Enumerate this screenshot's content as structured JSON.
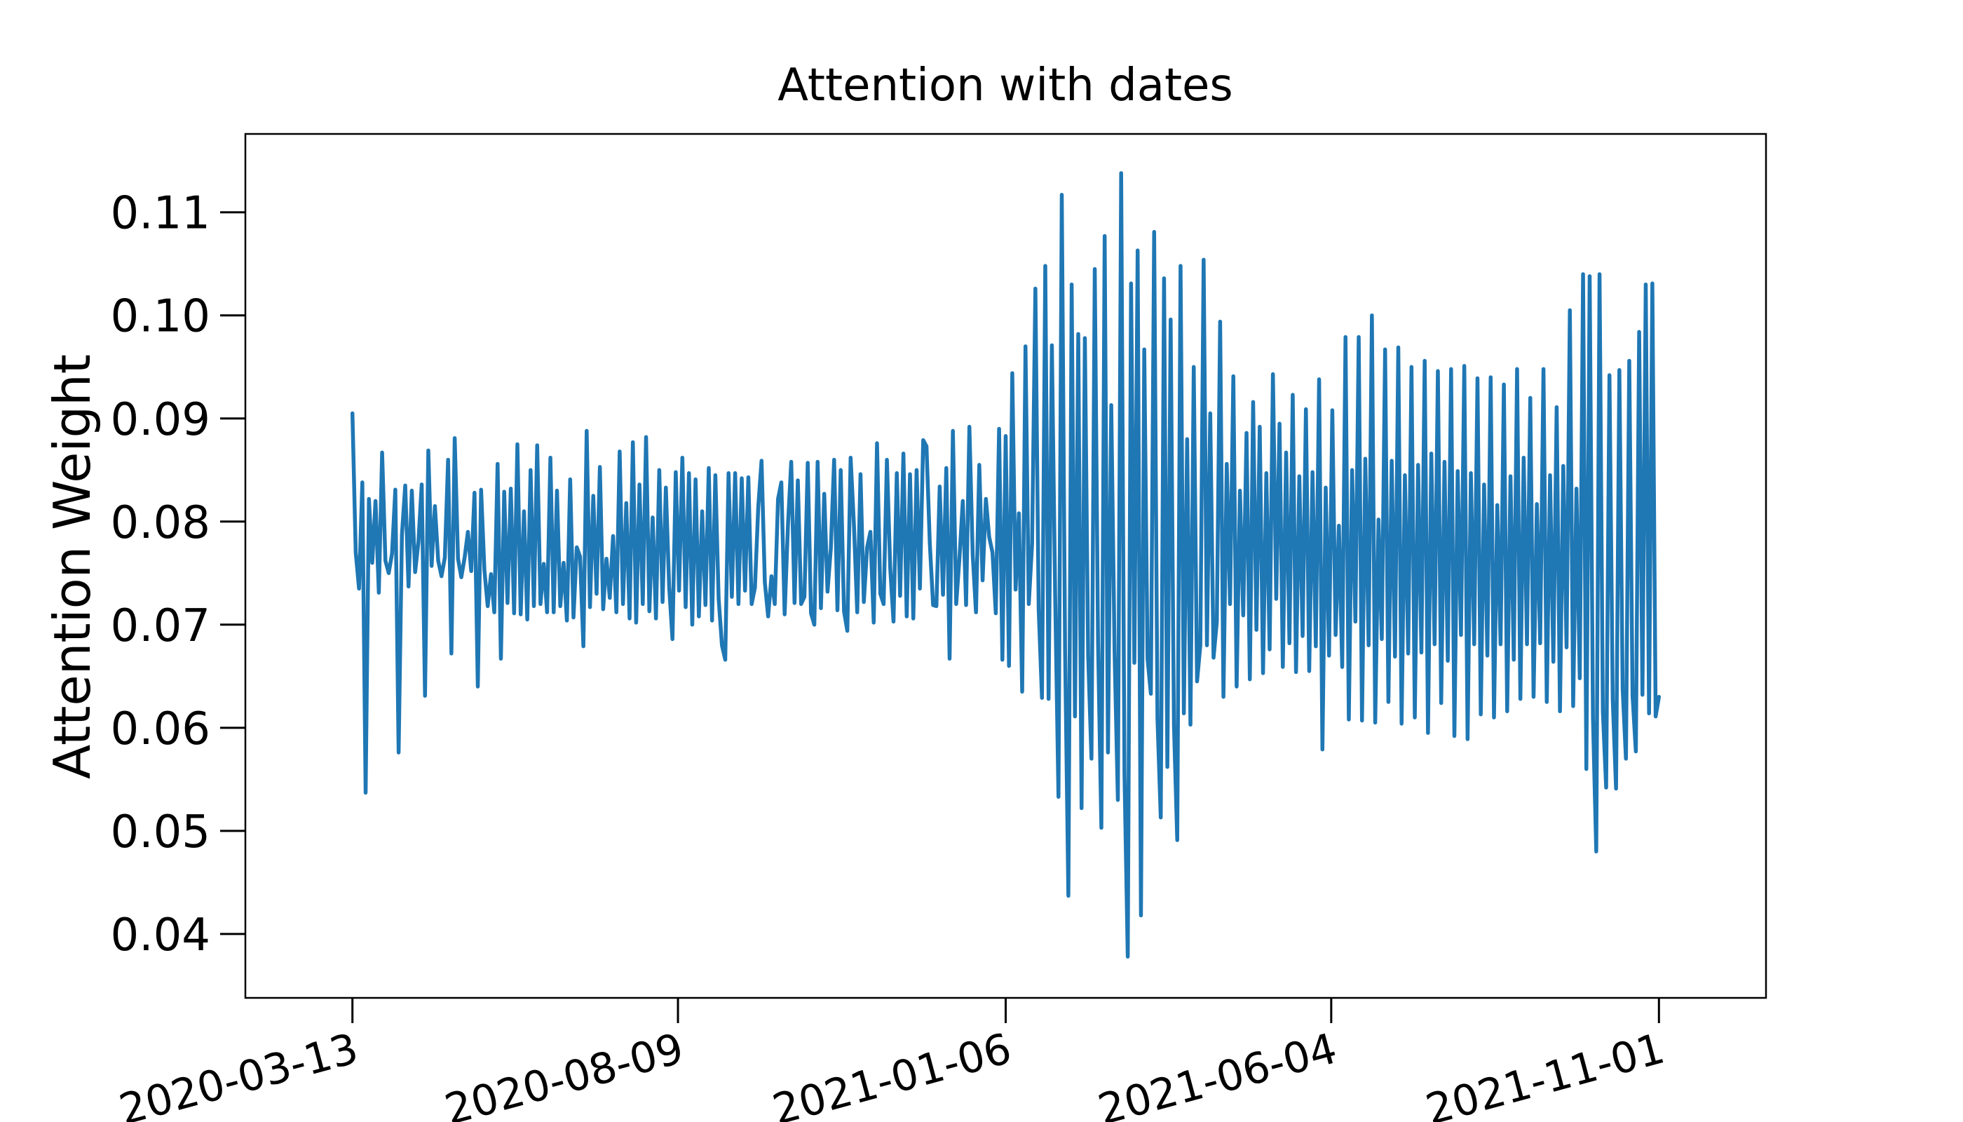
{
  "chart_data": {
    "type": "line",
    "title": "Attention with dates",
    "xlabel": "",
    "ylabel": "Attention Weight",
    "x_start": "2020-03-13",
    "x_end": "2021-11-01",
    "xlim": [
      "2020-01-24",
      "2021-12-20"
    ],
    "ylim": [
      0.0338,
      0.1176
    ],
    "xticks": [
      "2020-03-13",
      "2020-08-09",
      "2021-01-06",
      "2021-06-04",
      "2021-11-01"
    ],
    "yticks": [
      "0.04",
      "0.05",
      "0.06",
      "0.07",
      "0.08",
      "0.09",
      "0.10",
      "0.11"
    ],
    "grid": false,
    "line_color": "#1f77b4",
    "series": [
      {
        "values": [
          0.0905,
          0.077,
          0.0735,
          0.0838,
          0.0537,
          0.0822,
          0.076,
          0.082,
          0.0731,
          0.0867,
          0.0762,
          0.075,
          0.0769,
          0.0831,
          0.0576,
          0.0787,
          0.0835,
          0.0737,
          0.083,
          0.0751,
          0.078,
          0.0836,
          0.0631,
          0.0869,
          0.0757,
          0.0815,
          0.0762,
          0.0747,
          0.0765,
          0.086,
          0.0672,
          0.0881,
          0.0764,
          0.0746,
          0.0765,
          0.079,
          0.0752,
          0.0828,
          0.064,
          0.0831,
          0.0753,
          0.0718,
          0.0749,
          0.0712,
          0.0856,
          0.0667,
          0.0829,
          0.0721,
          0.0832,
          0.0711,
          0.0875,
          0.071,
          0.081,
          0.0705,
          0.085,
          0.0718,
          0.0874,
          0.072,
          0.0759,
          0.0712,
          0.0862,
          0.0712,
          0.083,
          0.0718,
          0.076,
          0.0704,
          0.0841,
          0.0707,
          0.0775,
          0.0766,
          0.0679,
          0.0888,
          0.0717,
          0.0825,
          0.073,
          0.0853,
          0.0715,
          0.0764,
          0.0726,
          0.0786,
          0.0712,
          0.0868,
          0.072,
          0.0818,
          0.0706,
          0.0877,
          0.0702,
          0.0836,
          0.072,
          0.0882,
          0.0713,
          0.0804,
          0.0706,
          0.085,
          0.0722,
          0.0833,
          0.0737,
          0.0686,
          0.0848,
          0.0733,
          0.0862,
          0.0717,
          0.0847,
          0.07,
          0.0841,
          0.0708,
          0.081,
          0.0719,
          0.0852,
          0.0704,
          0.0845,
          0.0725,
          0.068,
          0.0666,
          0.0847,
          0.0727,
          0.0847,
          0.072,
          0.0842,
          0.0733,
          0.0843,
          0.072,
          0.0736,
          0.0814,
          0.0859,
          0.0741,
          0.0708,
          0.0747,
          0.072,
          0.0822,
          0.0838,
          0.071,
          0.0796,
          0.0858,
          0.0721,
          0.084,
          0.072,
          0.0727,
          0.0857,
          0.0711,
          0.07,
          0.0858,
          0.0716,
          0.0827,
          0.0732,
          0.0774,
          0.086,
          0.0714,
          0.085,
          0.0713,
          0.0694,
          0.0862,
          0.0797,
          0.0712,
          0.0846,
          0.0722,
          0.0775,
          0.079,
          0.0702,
          0.0876,
          0.073,
          0.072,
          0.086,
          0.0755,
          0.0703,
          0.0847,
          0.0728,
          0.0866,
          0.0708,
          0.0846,
          0.0706,
          0.085,
          0.0735,
          0.0879,
          0.0873,
          0.0779,
          0.0719,
          0.0718,
          0.0834,
          0.0729,
          0.0852,
          0.0667,
          0.0888,
          0.072,
          0.0765,
          0.082,
          0.0719,
          0.0892,
          0.0768,
          0.0712,
          0.0855,
          0.0743,
          0.0822,
          0.0785,
          0.077,
          0.0711,
          0.089,
          0.0666,
          0.0883,
          0.066,
          0.0944,
          0.0734,
          0.0808,
          0.0635,
          0.097,
          0.072,
          0.0778,
          0.1026,
          0.0715,
          0.0629,
          0.1048,
          0.0628,
          0.0971,
          0.0728,
          0.0533,
          0.1117,
          0.0676,
          0.0437,
          0.103,
          0.0611,
          0.0982,
          0.0522,
          0.0978,
          0.067,
          0.057,
          0.1045,
          0.0682,
          0.0503,
          0.1077,
          0.0576,
          0.0913,
          0.0674,
          0.053,
          0.1138,
          0.0556,
          0.0378,
          0.1031,
          0.0663,
          0.1063,
          0.0418,
          0.0967,
          0.0667,
          0.0633,
          0.1081,
          0.0609,
          0.0513,
          0.1036,
          0.0562,
          0.0996,
          0.0603,
          0.0491,
          0.1048,
          0.0614,
          0.088,
          0.0603,
          0.095,
          0.0645,
          0.068,
          0.1054,
          0.068,
          0.0905,
          0.0668,
          0.0703,
          0.0994,
          0.063,
          0.0856,
          0.072,
          0.0941,
          0.064,
          0.083,
          0.0709,
          0.0886,
          0.0647,
          0.0916,
          0.0695,
          0.0892,
          0.0653,
          0.0847,
          0.0676,
          0.0943,
          0.0725,
          0.0895,
          0.0659,
          0.0867,
          0.0682,
          0.0923,
          0.0654,
          0.0844,
          0.0689,
          0.0909,
          0.0655,
          0.0848,
          0.0679,
          0.0938,
          0.0579,
          0.0833,
          0.067,
          0.0908,
          0.069,
          0.0796,
          0.0659,
          0.0979,
          0.0608,
          0.085,
          0.0703,
          0.0979,
          0.0607,
          0.0861,
          0.068,
          0.1,
          0.0605,
          0.0802,
          0.0686,
          0.0967,
          0.0625,
          0.0859,
          0.0669,
          0.0969,
          0.0604,
          0.0845,
          0.0672,
          0.095,
          0.061,
          0.0855,
          0.0673,
          0.0956,
          0.0595,
          0.0866,
          0.0681,
          0.0946,
          0.0624,
          0.0858,
          0.0665,
          0.0948,
          0.0592,
          0.0849,
          0.069,
          0.0951,
          0.0589,
          0.0847,
          0.0681,
          0.0939,
          0.0613,
          0.0836,
          0.067,
          0.094,
          0.061,
          0.0816,
          0.0681,
          0.0933,
          0.0616,
          0.0844,
          0.0666,
          0.0948,
          0.0628,
          0.0862,
          0.0681,
          0.092,
          0.063,
          0.0817,
          0.0682,
          0.0948,
          0.0625,
          0.0845,
          0.0664,
          0.0911,
          0.0616,
          0.0854,
          0.0678,
          0.1005,
          0.0621,
          0.0832,
          0.0648,
          0.104,
          0.056,
          0.1038,
          0.061,
          0.048,
          0.104,
          0.0616,
          0.0542,
          0.0942,
          0.0627,
          0.0541,
          0.0947,
          0.0638,
          0.057,
          0.0956,
          0.0631,
          0.0577,
          0.0984,
          0.0632,
          0.103,
          0.0614,
          0.1031,
          0.0611,
          0.063
        ]
      }
    ]
  }
}
